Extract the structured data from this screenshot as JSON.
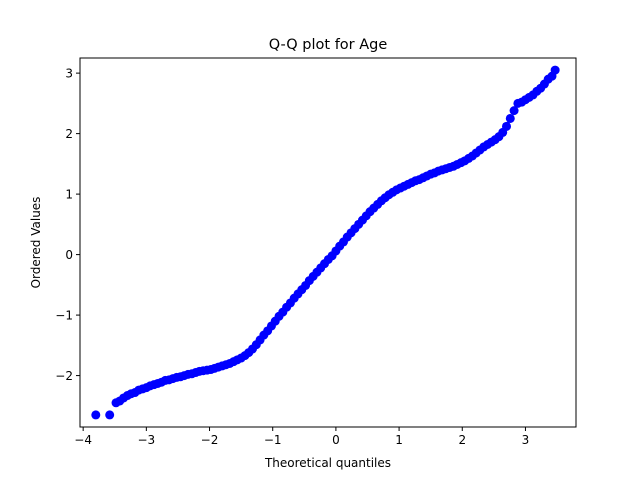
{
  "chart_data": {
    "type": "scatter",
    "title": "Q-Q plot for Age",
    "xlabel": "Theoretical quantiles",
    "ylabel": "Ordered Values",
    "xlim": [
      -4.05,
      3.8
    ],
    "ylim": [
      -2.85,
      3.25
    ],
    "xticks": [
      -4,
      -3,
      -2,
      -1,
      0,
      1,
      2,
      3
    ],
    "yticks": [
      -2,
      -1,
      0,
      1,
      2,
      3
    ],
    "grid": false,
    "marker_color": "#0000ff",
    "series": [
      {
        "values": [
          [
            -3.8,
            -2.65
          ],
          [
            -3.58,
            -2.65
          ],
          [
            -3.48,
            -2.45
          ],
          [
            -3.42,
            -2.42
          ],
          [
            -3.36,
            -2.37
          ],
          [
            -3.3,
            -2.33
          ],
          [
            -3.24,
            -2.3
          ],
          [
            -3.18,
            -2.28
          ],
          [
            -3.12,
            -2.24
          ],
          [
            -3.06,
            -2.22
          ],
          [
            -3.0,
            -2.2
          ],
          [
            -2.94,
            -2.17
          ],
          [
            -2.88,
            -2.15
          ],
          [
            -2.82,
            -2.13
          ],
          [
            -2.76,
            -2.11
          ],
          [
            -2.7,
            -2.08
          ],
          [
            -2.64,
            -2.07
          ],
          [
            -2.58,
            -2.05
          ],
          [
            -2.52,
            -2.03
          ],
          [
            -2.46,
            -2.02
          ],
          [
            -2.4,
            -2.0
          ],
          [
            -2.34,
            -1.98
          ],
          [
            -2.28,
            -1.97
          ],
          [
            -2.22,
            -1.95
          ],
          [
            -2.16,
            -1.93
          ],
          [
            -2.1,
            -1.92
          ],
          [
            -2.04,
            -1.91
          ],
          [
            -1.98,
            -1.9
          ],
          [
            -1.92,
            -1.88
          ],
          [
            -1.86,
            -1.86
          ],
          [
            -1.8,
            -1.84
          ],
          [
            -1.74,
            -1.82
          ],
          [
            -1.68,
            -1.8
          ],
          [
            -1.62,
            -1.77
          ],
          [
            -1.56,
            -1.74
          ],
          [
            -1.5,
            -1.71
          ],
          [
            -1.44,
            -1.67
          ],
          [
            -1.38,
            -1.62
          ],
          [
            -1.32,
            -1.56
          ],
          [
            -1.26,
            -1.49
          ],
          [
            -1.2,
            -1.41
          ],
          [
            -1.14,
            -1.33
          ],
          [
            -1.08,
            -1.26
          ],
          [
            -1.02,
            -1.18
          ],
          [
            -0.96,
            -1.1
          ],
          [
            -0.9,
            -1.02
          ],
          [
            -0.84,
            -0.95
          ],
          [
            -0.78,
            -0.87
          ],
          [
            -0.72,
            -0.8
          ],
          [
            -0.66,
            -0.72
          ],
          [
            -0.6,
            -0.65
          ],
          [
            -0.54,
            -0.58
          ],
          [
            -0.48,
            -0.51
          ],
          [
            -0.42,
            -0.43
          ],
          [
            -0.36,
            -0.36
          ],
          [
            -0.3,
            -0.29
          ],
          [
            -0.24,
            -0.22
          ],
          [
            -0.18,
            -0.15
          ],
          [
            -0.12,
            -0.08
          ],
          [
            -0.06,
            -0.02
          ],
          [
            0.0,
            0.06
          ],
          [
            0.06,
            0.14
          ],
          [
            0.12,
            0.21
          ],
          [
            0.18,
            0.29
          ],
          [
            0.24,
            0.36
          ],
          [
            0.3,
            0.43
          ],
          [
            0.36,
            0.5
          ],
          [
            0.42,
            0.57
          ],
          [
            0.48,
            0.64
          ],
          [
            0.54,
            0.71
          ],
          [
            0.6,
            0.77
          ],
          [
            0.66,
            0.83
          ],
          [
            0.72,
            0.89
          ],
          [
            0.78,
            0.94
          ],
          [
            0.84,
            0.99
          ],
          [
            0.9,
            1.03
          ],
          [
            0.96,
            1.07
          ],
          [
            1.02,
            1.1
          ],
          [
            1.08,
            1.13
          ],
          [
            1.14,
            1.16
          ],
          [
            1.2,
            1.19
          ],
          [
            1.26,
            1.22
          ],
          [
            1.32,
            1.24
          ],
          [
            1.38,
            1.27
          ],
          [
            1.44,
            1.3
          ],
          [
            1.5,
            1.33
          ],
          [
            1.56,
            1.35
          ],
          [
            1.62,
            1.38
          ],
          [
            1.68,
            1.4
          ],
          [
            1.74,
            1.42
          ],
          [
            1.8,
            1.44
          ],
          [
            1.86,
            1.46
          ],
          [
            1.92,
            1.49
          ],
          [
            1.98,
            1.52
          ],
          [
            2.04,
            1.55
          ],
          [
            2.1,
            1.59
          ],
          [
            2.16,
            1.63
          ],
          [
            2.22,
            1.68
          ],
          [
            2.28,
            1.73
          ],
          [
            2.34,
            1.78
          ],
          [
            2.4,
            1.82
          ],
          [
            2.46,
            1.86
          ],
          [
            2.52,
            1.9
          ],
          [
            2.58,
            1.95
          ],
          [
            2.64,
            2.02
          ],
          [
            2.7,
            2.12
          ],
          [
            2.76,
            2.25
          ],
          [
            2.82,
            2.38
          ],
          [
            2.88,
            2.5
          ],
          [
            2.94,
            2.52
          ],
          [
            3.0,
            2.56
          ],
          [
            3.06,
            2.6
          ],
          [
            3.12,
            2.64
          ],
          [
            3.18,
            2.7
          ],
          [
            3.24,
            2.75
          ],
          [
            3.3,
            2.82
          ],
          [
            3.36,
            2.9
          ],
          [
            3.42,
            2.95
          ],
          [
            3.47,
            3.05
          ]
        ]
      }
    ]
  }
}
